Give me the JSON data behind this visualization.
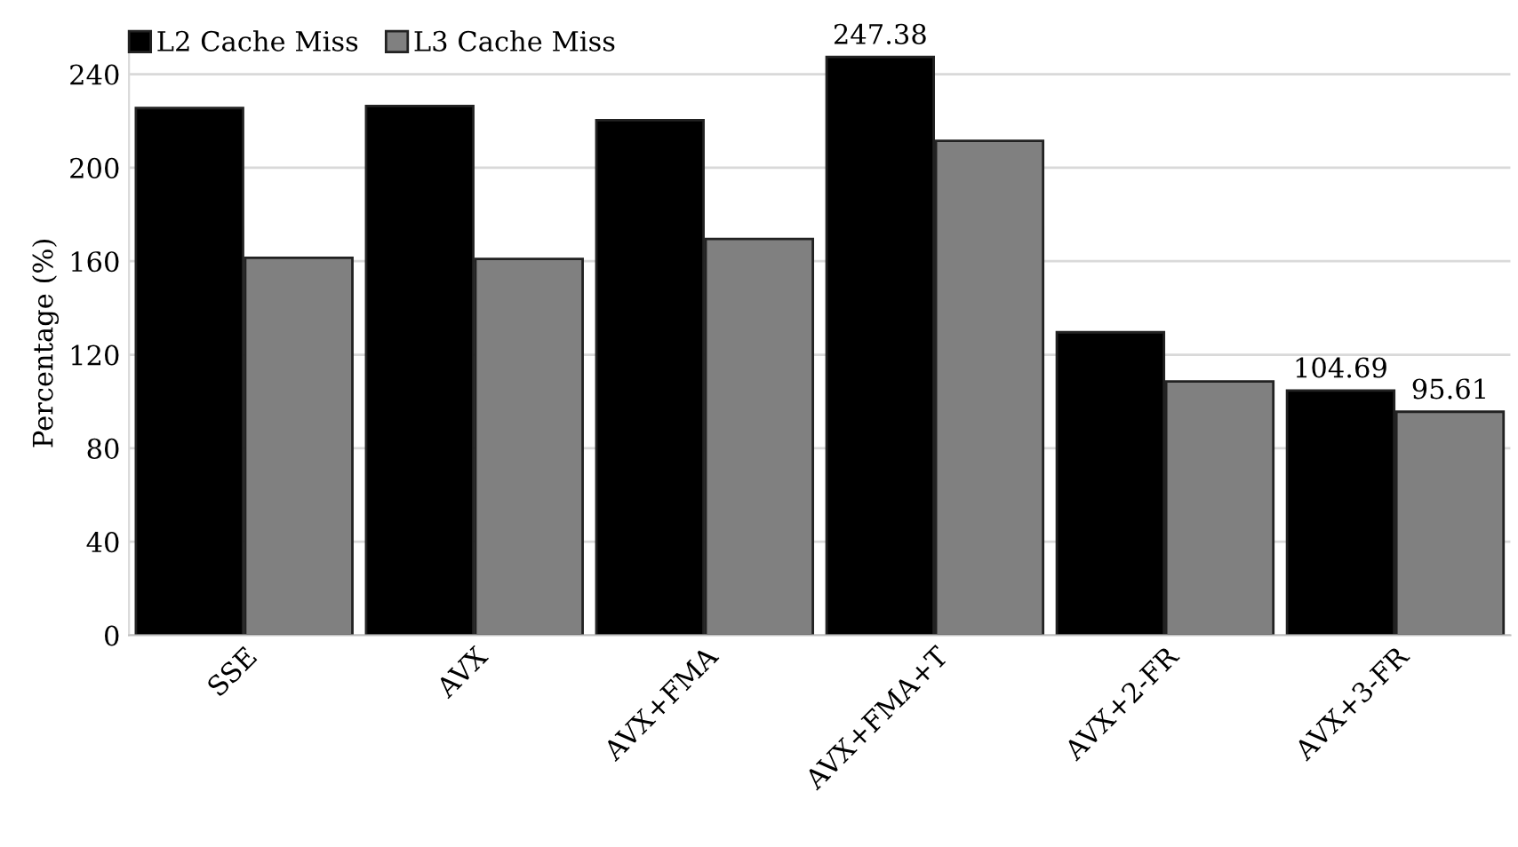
{
  "chart_data": {
    "type": "bar",
    "ylabel": "Percentage (%)",
    "categories": [
      "SSE",
      "AVX",
      "AVX+FMA",
      "AVX+FMA+T",
      "AVX+2-FR",
      "AVX+3-FR"
    ],
    "series": [
      {
        "name": "L2 Cache Miss",
        "color": "#000000",
        "values": [
          225.5,
          226.4,
          220.3,
          247.38,
          129.6,
          104.69
        ],
        "value_labels": [
          null,
          null,
          null,
          "247.38",
          null,
          "104.69"
        ]
      },
      {
        "name": "L3 Cache Miss",
        "color": "#808080",
        "values": [
          161.5,
          161,
          169.5,
          211.5,
          108.6,
          95.61
        ],
        "value_labels": [
          null,
          null,
          null,
          null,
          null,
          "95.61"
        ]
      }
    ],
    "ylim": [
      0,
      250
    ],
    "yticks": [
      0,
      40,
      80,
      120,
      160,
      200,
      240
    ],
    "grid": "y",
    "legend": "top left"
  }
}
